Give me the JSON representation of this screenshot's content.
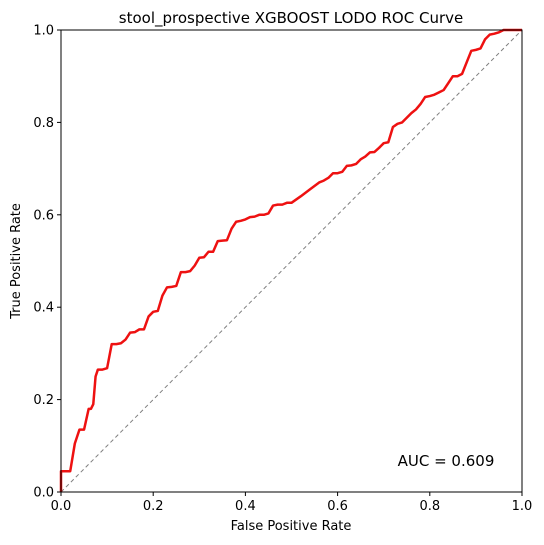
{
  "chart_data": {
    "type": "line",
    "title": "stool_prospective XGBOOST LODO ROC Curve",
    "xlabel": "False Positive Rate",
    "ylabel": "True Positive Rate",
    "xlim": [
      0,
      1
    ],
    "ylim": [
      0,
      1
    ],
    "xticks": [
      "0.0",
      "0.2",
      "0.4",
      "0.6",
      "0.8",
      "1.0"
    ],
    "yticks": [
      "0.0",
      "0.2",
      "0.4",
      "0.6",
      "0.8",
      "1.0"
    ],
    "grid": false,
    "annotation": "AUC = 0.609",
    "colors": {
      "roc": "#ee1111",
      "diagonal": "#808080"
    },
    "series": [
      {
        "x": [
          0,
          0,
          0.02,
          0.03,
          0.04,
          0.05,
          0.06,
          0.065,
          0.07,
          0.075,
          0.08,
          0.085,
          0.09,
          0.1,
          0.11,
          0.12,
          0.13,
          0.14,
          0.15,
          0.16,
          0.17,
          0.18,
          0.19,
          0.2,
          0.21,
          0.22,
          0.23,
          0.24,
          0.25,
          0.26,
          0.27,
          0.28,
          0.29,
          0.3,
          0.31,
          0.32,
          0.33,
          0.34,
          0.35,
          0.36,
          0.37,
          0.38,
          0.39,
          0.4,
          0.41,
          0.42,
          0.43,
          0.44,
          0.45,
          0.46,
          0.47,
          0.48,
          0.49,
          0.5,
          0.52,
          0.54,
          0.56,
          0.57,
          0.58,
          0.59,
          0.6,
          0.61,
          0.62,
          0.63,
          0.64,
          0.65,
          0.66,
          0.67,
          0.68,
          0.69,
          0.7,
          0.71,
          0.72,
          0.73,
          0.74,
          0.75,
          0.76,
          0.77,
          0.78,
          0.79,
          0.8,
          0.81,
          0.82,
          0.83,
          0.84,
          0.85,
          0.86,
          0.87,
          0.88,
          0.89,
          0.9,
          0.91,
          0.92,
          0.93,
          0.94,
          0.95,
          0.96,
          0.97,
          0.98,
          1.0
        ],
        "y": [
          0,
          0.045,
          0.045,
          0.105,
          0.135,
          0.135,
          0.18,
          0.18,
          0.19,
          0.25,
          0.265,
          0.265,
          0.265,
          0.268,
          0.32,
          0.32,
          0.322,
          0.33,
          0.345,
          0.346,
          0.352,
          0.352,
          0.38,
          0.39,
          0.392,
          0.425,
          0.443,
          0.444,
          0.446,
          0.476,
          0.476,
          0.478,
          0.49,
          0.507,
          0.508,
          0.52,
          0.52,
          0.543,
          0.544,
          0.545,
          0.57,
          0.585,
          0.587,
          0.59,
          0.595,
          0.596,
          0.6,
          0.6,
          0.603,
          0.62,
          0.622,
          0.622,
          0.626,
          0.626,
          0.64,
          0.655,
          0.67,
          0.674,
          0.68,
          0.69,
          0.69,
          0.693,
          0.706,
          0.707,
          0.71,
          0.72,
          0.726,
          0.735,
          0.736,
          0.745,
          0.755,
          0.757,
          0.79,
          0.797,
          0.8,
          0.81,
          0.82,
          0.828,
          0.84,
          0.855,
          0.857,
          0.86,
          0.865,
          0.87,
          0.885,
          0.9,
          0.9,
          0.905,
          0.93,
          0.955,
          0.957,
          0.96,
          0.98,
          0.99,
          0.992,
          0.995,
          1.0,
          1.0,
          1.0,
          1.0
        ]
      }
    ]
  }
}
